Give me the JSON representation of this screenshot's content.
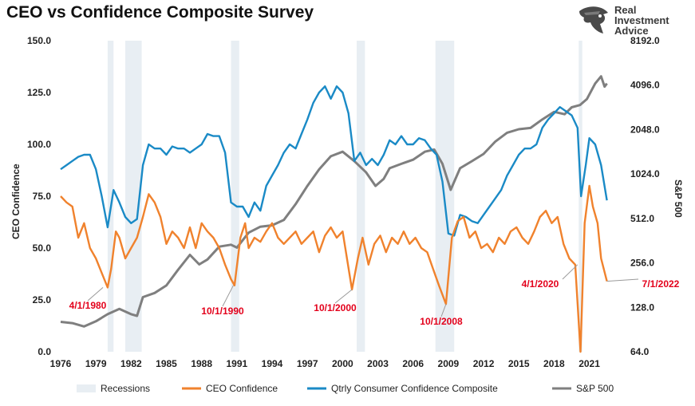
{
  "title": "CEO vs Confidence Composite Survey",
  "logo": {
    "line1": "Real",
    "line2": "Investment",
    "line3": "Advice",
    "icon": "eagle-head-icon"
  },
  "colors": {
    "ceo": "#f0822d",
    "consumer": "#1a8ac6",
    "sp500": "#7f7f7f",
    "recession": "#e8eef3",
    "annotation": "#e3001b"
  },
  "chart_data": {
    "type": "line",
    "title": "CEO vs Confidence Composite Survey",
    "x_ticks": [
      "1976",
      "1979",
      "1982",
      "1985",
      "1988",
      "1991",
      "1994",
      "1997",
      "2000",
      "2003",
      "2006",
      "2009",
      "2012",
      "2015",
      "2018",
      "2021"
    ],
    "xlim": [
      1976,
      2023
    ],
    "ylabel": "CEO Confidence",
    "ylim": [
      0,
      150
    ],
    "y_ticks": [
      "0.0",
      "25.0",
      "50.0",
      "75.0",
      "100.0",
      "125.0",
      "150.0"
    ],
    "y2label": "S&P 500",
    "y2_scale": "log2",
    "y2lim": [
      64,
      8192
    ],
    "y2_ticks": [
      "64.0",
      "128.0",
      "256.0",
      "512.0",
      "1024.0",
      "2048.0",
      "4096.0",
      "8192.0"
    ],
    "grid": false,
    "legend_position": "bottom",
    "recessions": [
      [
        1980.0,
        1980.5
      ],
      [
        1981.5,
        1982.9
      ],
      [
        1990.5,
        1991.2
      ],
      [
        2001.2,
        2001.9
      ],
      [
        2007.9,
        2009.5
      ],
      [
        2020.1,
        2020.4
      ]
    ],
    "series": [
      {
        "name": "CEO Confidence",
        "axis": "left",
        "x": [
          1976.0,
          1976.5,
          1977.0,
          1977.5,
          1978.0,
          1978.5,
          1979.0,
          1979.5,
          1980.0,
          1980.3,
          1980.7,
          1981.0,
          1981.5,
          1982.0,
          1982.5,
          1983.0,
          1983.5,
          1984.0,
          1984.5,
          1985.0,
          1985.5,
          1986.0,
          1986.5,
          1987.0,
          1987.5,
          1988.0,
          1988.5,
          1989.0,
          1989.5,
          1990.0,
          1990.5,
          1990.8,
          1991.3,
          1991.7,
          1992.0,
          1992.5,
          1993.0,
          1993.5,
          1994.0,
          1994.5,
          1995.0,
          1995.5,
          1996.0,
          1996.5,
          1997.0,
          1997.5,
          1998.0,
          1998.5,
          1999.0,
          1999.5,
          2000.0,
          2000.8,
          2001.3,
          2001.7,
          2002.2,
          2002.7,
          2003.2,
          2003.7,
          2004.2,
          2004.7,
          2005.2,
          2005.7,
          2006.2,
          2006.7,
          2007.2,
          2007.7,
          2008.2,
          2008.8,
          2009.3,
          2009.8,
          2010.3,
          2010.8,
          2011.3,
          2011.8,
          2012.3,
          2012.8,
          2013.3,
          2013.8,
          2014.3,
          2014.8,
          2015.3,
          2015.8,
          2016.3,
          2016.8,
          2017.3,
          2017.8,
          2018.3,
          2018.8,
          2019.3,
          2019.8,
          2020.25,
          2020.6,
          2021.0,
          2021.3,
          2021.7,
          2022.0,
          2022.5
        ],
        "y": [
          75,
          72,
          70,
          55,
          62,
          50,
          45,
          38,
          31,
          40,
          58,
          55,
          45,
          50,
          55,
          65,
          76,
          72,
          65,
          52,
          58,
          55,
          50,
          60,
          50,
          62,
          58,
          55,
          50,
          42,
          35,
          32,
          55,
          62,
          50,
          55,
          53,
          58,
          62,
          55,
          52,
          55,
          58,
          52,
          55,
          58,
          48,
          56,
          60,
          55,
          58,
          30,
          45,
          55,
          42,
          52,
          56,
          48,
          55,
          52,
          58,
          52,
          55,
          50,
          48,
          40,
          32,
          23,
          55,
          63,
          65,
          55,
          58,
          50,
          52,
          48,
          55,
          52,
          58,
          60,
          55,
          52,
          58,
          65,
          68,
          62,
          65,
          52,
          45,
          42,
          0,
          62,
          80,
          70,
          62,
          45,
          34
        ]
      },
      {
        "name": "Qtrly Consumer Confidence Composite",
        "axis": "left",
        "x": [
          1976.0,
          1976.5,
          1977.0,
          1977.5,
          1978.0,
          1978.5,
          1979.0,
          1979.5,
          1980.0,
          1980.5,
          1981.0,
          1981.5,
          1982.0,
          1982.5,
          1983.0,
          1983.5,
          1984.0,
          1984.5,
          1985.0,
          1985.5,
          1986.0,
          1986.5,
          1987.0,
          1987.5,
          1988.0,
          1988.5,
          1989.0,
          1989.5,
          1990.0,
          1990.5,
          1991.0,
          1991.5,
          1992.0,
          1992.5,
          1993.0,
          1993.5,
          1994.0,
          1994.5,
          1995.0,
          1995.5,
          1996.0,
          1996.5,
          1997.0,
          1997.5,
          1998.0,
          1998.5,
          1999.0,
          1999.5,
          2000.0,
          2000.5,
          2001.0,
          2001.5,
          2002.0,
          2002.5,
          2003.0,
          2003.5,
          2004.0,
          2004.5,
          2005.0,
          2005.5,
          2006.0,
          2006.5,
          2007.0,
          2007.5,
          2008.0,
          2008.5,
          2009.0,
          2009.5,
          2010.0,
          2010.5,
          2011.0,
          2011.5,
          2012.0,
          2012.5,
          2013.0,
          2013.5,
          2014.0,
          2014.5,
          2015.0,
          2015.5,
          2016.0,
          2016.5,
          2017.0,
          2017.5,
          2018.0,
          2018.5,
          2019.0,
          2019.5,
          2020.0,
          2020.3,
          2020.7,
          2021.0,
          2021.5,
          2022.0,
          2022.5
        ],
        "y": [
          88,
          90,
          92,
          94,
          95,
          95,
          88,
          75,
          60,
          78,
          72,
          65,
          62,
          64,
          90,
          100,
          98,
          98,
          95,
          99,
          98,
          98,
          96,
          98,
          100,
          105,
          104,
          104,
          96,
          72,
          70,
          70,
          65,
          72,
          68,
          80,
          85,
          90,
          96,
          100,
          98,
          105,
          112,
          120,
          125,
          128,
          122,
          128,
          125,
          115,
          92,
          96,
          90,
          93,
          90,
          95,
          102,
          100,
          104,
          100,
          100,
          103,
          102,
          98,
          95,
          82,
          57,
          56,
          66,
          65,
          63,
          62,
          66,
          70,
          74,
          78,
          85,
          90,
          95,
          98,
          98,
          100,
          108,
          112,
          115,
          118,
          116,
          114,
          108,
          75,
          90,
          103,
          100,
          90,
          73
        ]
      },
      {
        "name": "S&P 500",
        "axis": "right",
        "x": [
          1976.0,
          1977.0,
          1978.0,
          1979.0,
          1980.0,
          1981.0,
          1982.0,
          1982.5,
          1983.0,
          1984.0,
          1985.0,
          1986.0,
          1987.0,
          1987.8,
          1988.5,
          1989.5,
          1990.5,
          1991.0,
          1992.0,
          1993.0,
          1994.0,
          1995.0,
          1996.0,
          1997.0,
          1998.0,
          1999.0,
          2000.0,
          2001.0,
          2002.0,
          2002.8,
          2003.5,
          2004.0,
          2005.0,
          2006.0,
          2007.0,
          2007.8,
          2008.5,
          2009.2,
          2010.0,
          2011.0,
          2012.0,
          2013.0,
          2014.0,
          2015.0,
          2016.0,
          2017.0,
          2018.0,
          2018.9,
          2019.5,
          2020.2,
          2020.8,
          2021.5,
          2022.0,
          2022.3,
          2022.5
        ],
        "y": [
          102,
          100,
          95,
          103,
          115,
          125,
          115,
          112,
          150,
          160,
          180,
          230,
          290,
          250,
          270,
          330,
          340,
          325,
          410,
          450,
          460,
          500,
          640,
          850,
          1100,
          1350,
          1450,
          1250,
          1050,
          850,
          950,
          1120,
          1200,
          1280,
          1450,
          1500,
          1200,
          800,
          1120,
          1250,
          1400,
          1700,
          1950,
          2060,
          2100,
          2400,
          2700,
          2600,
          2900,
          3000,
          3300,
          4200,
          4700,
          4000,
          4200
        ]
      }
    ],
    "annotations": [
      "4/1/1980",
      "10/1/1990",
      "10/1/2000",
      "10/1/2008",
      "4/1/2020",
      "7/1/2022"
    ]
  },
  "legend": [
    {
      "label": "Recessions"
    },
    {
      "label": "CEO Confidence"
    },
    {
      "label": "Qtrly Consumer Confidence Composite"
    },
    {
      "label": "S&P 500"
    }
  ]
}
